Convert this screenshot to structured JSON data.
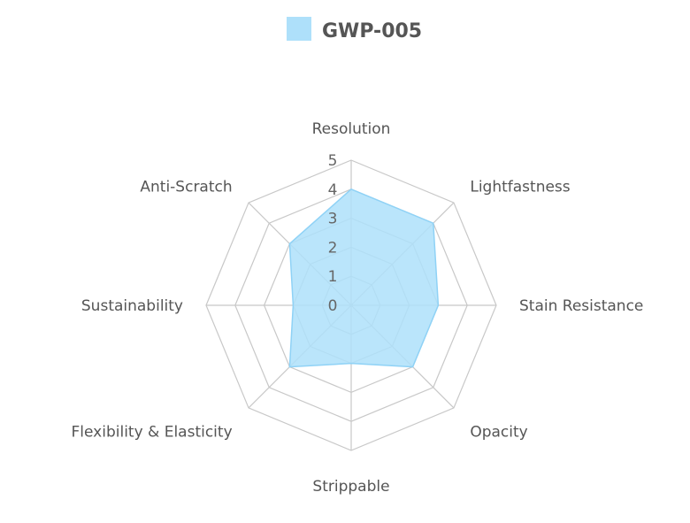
{
  "chart_data": {
    "type": "radar",
    "title": "",
    "axes": [
      "Resolution",
      "Lightfastness",
      "Stain Resistance",
      "Opacity",
      "Strippable",
      "Flexibility & Elasticity",
      "Sustainability",
      "Anti-Scratch"
    ],
    "scale": {
      "min": 0,
      "max": 5,
      "ticks": [
        0,
        1,
        2,
        3,
        4,
        5
      ]
    },
    "grid": true,
    "legend": "top-center",
    "series": [
      {
        "name": "GWP-005",
        "values": [
          4,
          4,
          3,
          3,
          2,
          3,
          2,
          3
        ],
        "color": "#aee0fa",
        "stroke": "#8fd2f6"
      }
    ]
  }
}
